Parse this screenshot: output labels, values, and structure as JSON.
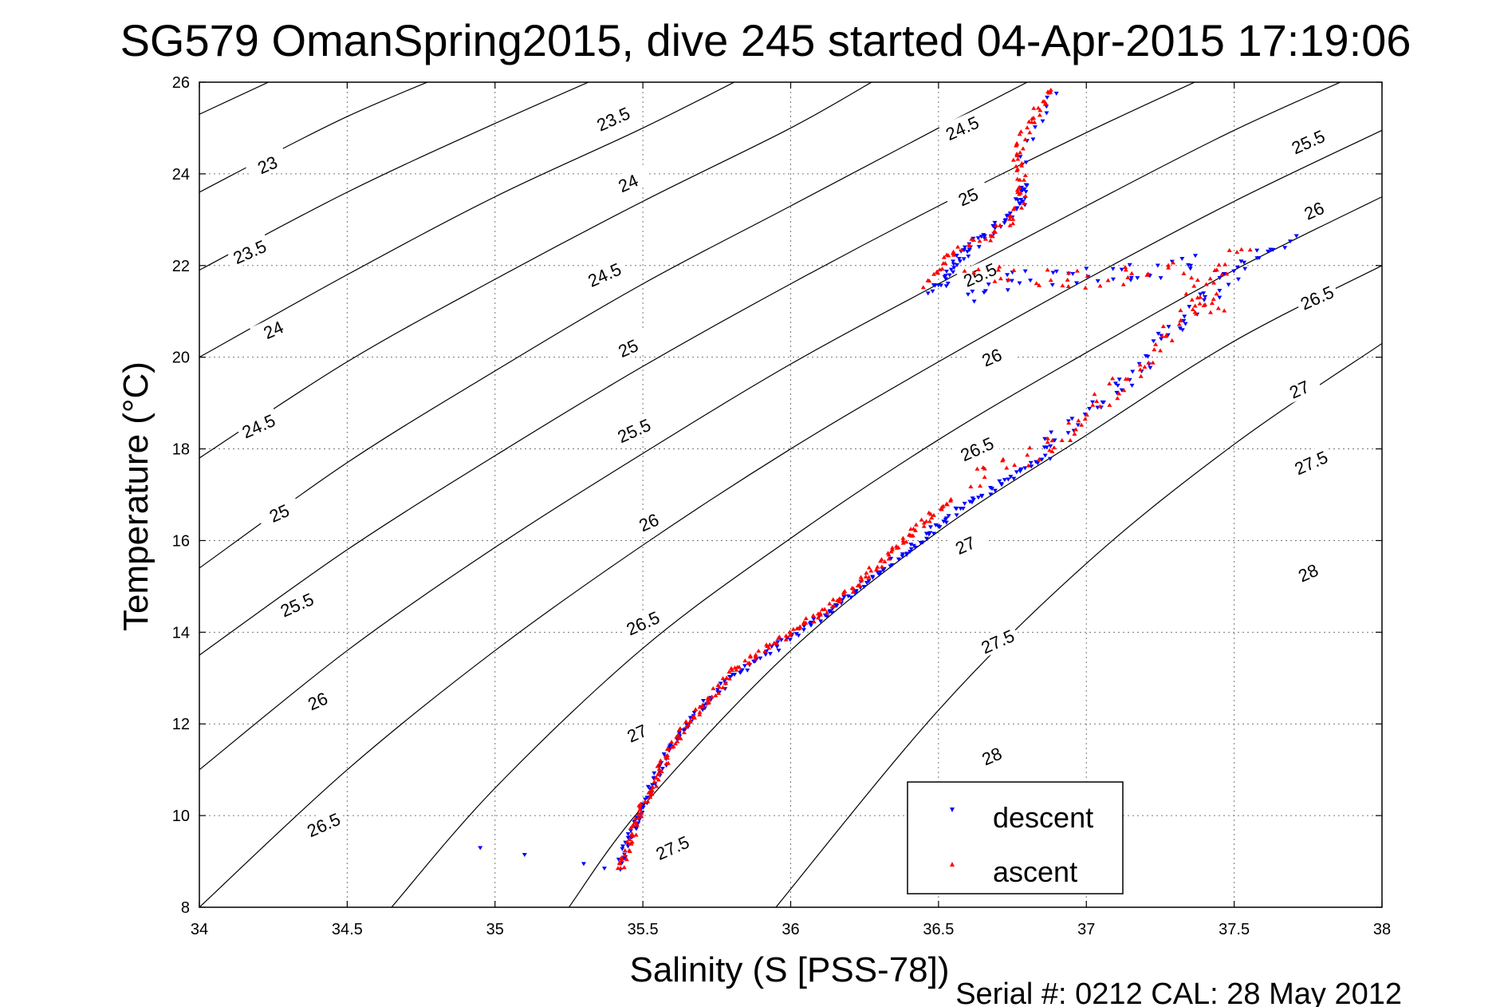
{
  "footer": "Serial #: 0212  CAL: 28 May 2012",
  "chart_data": {
    "type": "scatter",
    "title": "SG579 OmanSpring2015, dive 245 started 04-Apr-2015 17:19:06",
    "xlabel": "Salinity (S [PSS-78])",
    "ylabel": "Temperature (°C)",
    "xlim": [
      34,
      38
    ],
    "ylim": [
      8,
      26
    ],
    "xticks": [
      "34",
      "34.5",
      "35",
      "35.5",
      "36",
      "36.5",
      "37",
      "37.5",
      "38"
    ],
    "yticks": [
      "8",
      "10",
      "12",
      "14",
      "16",
      "18",
      "20",
      "22",
      "24",
      "26"
    ],
    "grid": true,
    "legend_position": "bottom-right",
    "contour_levels": [
      "23",
      "23.5",
      "24",
      "24.5",
      "25",
      "25.5",
      "26",
      "26.5",
      "27",
      "27.5",
      "28"
    ],
    "contours": [
      {
        "level": 23,
        "label": "23",
        "points": [
          [
            34,
            25.3
          ],
          [
            34.5,
            26.8
          ]
        ]
      },
      {
        "level": 23,
        "label": "23",
        "points": [
          [
            34,
            23.6
          ],
          [
            34.5,
            25.25
          ],
          [
            35,
            26.6
          ]
        ]
      },
      {
        "level": 23.5,
        "label": "23.5",
        "points": [
          [
            34,
            21.9
          ],
          [
            34.5,
            23.6
          ],
          [
            35,
            25.1
          ],
          [
            35.6,
            26.8
          ]
        ]
      },
      {
        "level": 24,
        "label": "24",
        "points": [
          [
            34,
            20.0
          ],
          [
            34.5,
            21.8
          ],
          [
            35,
            23.5
          ],
          [
            35.5,
            25.0
          ],
          [
            35.9,
            26.3
          ]
        ]
      },
      {
        "level": 24.5,
        "label": "24.5",
        "points": [
          [
            34,
            17.8
          ],
          [
            34.5,
            19.9
          ],
          [
            35,
            21.7
          ],
          [
            35.5,
            23.4
          ],
          [
            36,
            25.0
          ],
          [
            36.3,
            26.1
          ]
        ]
      },
      {
        "level": 25,
        "label": "25",
        "points": [
          [
            34,
            15.4
          ],
          [
            34.5,
            17.7
          ],
          [
            35,
            19.7
          ],
          [
            35.5,
            21.6
          ],
          [
            36,
            23.3
          ],
          [
            36.5,
            25.0
          ],
          [
            36.8,
            26.0
          ]
        ]
      },
      {
        "level": 25.5,
        "label": "25.5",
        "points": [
          [
            34,
            13.5
          ],
          [
            34.5,
            15.8
          ],
          [
            35,
            17.85
          ],
          [
            35.5,
            19.8
          ],
          [
            36,
            21.6
          ],
          [
            36.5,
            23.3
          ],
          [
            37,
            24.9
          ],
          [
            37.4,
            26.1
          ]
        ]
      },
      {
        "level": 26,
        "label": "26",
        "points": [
          [
            34,
            11.0
          ],
          [
            34.5,
            13.6
          ],
          [
            35,
            15.85
          ],
          [
            35.5,
            17.9
          ],
          [
            36,
            19.85
          ],
          [
            36.5,
            21.6
          ],
          [
            37,
            23.3
          ],
          [
            37.5,
            24.95
          ],
          [
            38,
            26.4
          ]
        ]
      },
      {
        "level": 26.5,
        "label": "26.5",
        "points": [
          [
            34,
            8.0
          ],
          [
            34.5,
            11.0
          ],
          [
            35,
            13.6
          ],
          [
            35.5,
            15.9
          ],
          [
            36,
            18.0
          ],
          [
            36.5,
            19.9
          ],
          [
            37,
            21.7
          ],
          [
            37.5,
            23.4
          ],
          [
            38,
            24.95
          ]
        ]
      },
      {
        "level": 27,
        "label": "27",
        "points": [
          [
            34.65,
            8.0
          ],
          [
            35,
            10.6
          ],
          [
            35.5,
            13.65
          ],
          [
            36,
            16.05
          ],
          [
            36.5,
            18.2
          ],
          [
            37,
            20.1
          ],
          [
            37.5,
            21.9
          ],
          [
            38,
            23.5
          ]
        ]
      },
      {
        "level": 27.5,
        "label": "27.5",
        "points": [
          [
            35.25,
            8.0
          ],
          [
            35.5,
            10.2
          ],
          [
            36,
            13.6
          ],
          [
            36.5,
            16.2
          ],
          [
            37,
            18.3
          ],
          [
            37.5,
            20.35
          ],
          [
            38,
            22.0
          ]
        ]
      },
      {
        "level": 28,
        "label": "28",
        "points": [
          [
            35.95,
            8.0
          ],
          [
            36.5,
            12.3
          ],
          [
            37,
            15.5
          ],
          [
            37.5,
            18.1
          ],
          [
            38,
            20.3
          ]
        ]
      }
    ],
    "contour_labels": [
      {
        "label": "23",
        "s": 34.23,
        "t": 24.2
      },
      {
        "label": "23.5",
        "s": 34.17,
        "t": 22.3
      },
      {
        "label": "24",
        "s": 34.25,
        "t": 20.6
      },
      {
        "label": "24.5",
        "s": 34.2,
        "t": 18.5
      },
      {
        "label": "25",
        "s": 34.27,
        "t": 16.6
      },
      {
        "label": "25.5",
        "s": 34.33,
        "t": 14.6
      },
      {
        "label": "26",
        "s": 34.4,
        "t": 12.5
      },
      {
        "label": "26.5",
        "s": 34.42,
        "t": 9.8
      },
      {
        "label": "23.5",
        "s": 35.4,
        "t": 25.2
      },
      {
        "label": "24",
        "s": 35.45,
        "t": 23.8
      },
      {
        "label": "24.5",
        "s": 35.37,
        "t": 21.8
      },
      {
        "label": "25",
        "s": 35.45,
        "t": 20.2
      },
      {
        "label": "25.5",
        "s": 35.47,
        "t": 18.4
      },
      {
        "label": "26",
        "s": 35.52,
        "t": 16.4
      },
      {
        "label": "26.5",
        "s": 35.5,
        "t": 14.2
      },
      {
        "label": "27",
        "s": 35.48,
        "t": 11.8
      },
      {
        "label": "27.5",
        "s": 35.6,
        "t": 9.3
      },
      {
        "label": "24.5",
        "s": 36.58,
        "t": 25.0
      },
      {
        "label": "25",
        "s": 36.6,
        "t": 23.5
      },
      {
        "label": "25.5",
        "s": 36.64,
        "t": 21.8
      },
      {
        "label": "26",
        "s": 36.68,
        "t": 20.0
      },
      {
        "label": "26.5",
        "s": 36.63,
        "t": 18.0
      },
      {
        "label": "27",
        "s": 36.59,
        "t": 15.9
      },
      {
        "label": "27.5",
        "s": 36.7,
        "t": 13.8
      },
      {
        "label": "28",
        "s": 36.68,
        "t": 11.3
      },
      {
        "label": "25.5",
        "s": 37.75,
        "t": 24.7
      },
      {
        "label": "26",
        "s": 37.77,
        "t": 23.2
      },
      {
        "label": "26.5",
        "s": 37.78,
        "t": 21.3
      },
      {
        "label": "27",
        "s": 37.72,
        "t": 19.3
      },
      {
        "label": "27.5",
        "s": 37.76,
        "t": 17.7
      },
      {
        "label": "28",
        "s": 37.75,
        "t": 15.3
      }
    ],
    "series": [
      {
        "name": "descent",
        "color": "#0000ff",
        "marker": "triangle-down",
        "segments": [
          {
            "points": [
              [
                35.42,
                8.85
              ],
              [
                35.45,
                9.5
              ],
              [
                35.5,
                10.2
              ],
              [
                35.55,
                10.9
              ],
              [
                35.6,
                11.5
              ],
              [
                35.65,
                12.0
              ],
              [
                35.72,
                12.5
              ],
              [
                35.8,
                13.0
              ],
              [
                35.88,
                13.4
              ],
              [
                35.98,
                13.8
              ],
              [
                36.1,
                14.3
              ],
              [
                36.2,
                14.8
              ],
              [
                36.3,
                15.3
              ],
              [
                36.42,
                15.9
              ],
              [
                36.55,
                16.6
              ],
              [
                36.7,
                17.2
              ],
              [
                36.85,
                17.8
              ]
            ],
            "count": 220,
            "jitter": 0.013
          },
          {
            "points": [
              [
                36.85,
                17.9
              ],
              [
                36.95,
                18.6
              ],
              [
                37.05,
                19.1
              ],
              [
                37.15,
                19.6
              ],
              [
                37.25,
                20.3
              ],
              [
                37.35,
                21.0
              ],
              [
                37.45,
                21.5
              ],
              [
                37.55,
                22.2
              ],
              [
                37.7,
                22.55
              ]
            ],
            "count": 70,
            "jitter": 0.03
          },
          {
            "points": [
              [
                36.48,
                21.4
              ],
              [
                36.55,
                22.0
              ],
              [
                36.62,
                22.5
              ],
              [
                36.7,
                22.9
              ],
              [
                36.76,
                23.3
              ],
              [
                36.8,
                23.6
              ],
              [
                36.8,
                23.8
              ]
            ],
            "count": 70,
            "jitter": 0.02
          },
          {
            "points": [
              [
                36.6,
                21.3
              ],
              [
                36.7,
                21.6
              ],
              [
                36.85,
                21.75
              ],
              [
                37.0,
                21.8
              ],
              [
                37.2,
                21.9
              ],
              [
                37.4,
                22.1
              ]
            ],
            "count": 40,
            "jitter": 0.04
          },
          {
            "points": [
              [
                36.78,
                24.3
              ],
              [
                36.82,
                24.8
              ],
              [
                36.85,
                25.4
              ],
              [
                36.9,
                25.85
              ]
            ],
            "count": 10,
            "jitter": 0.02
          },
          {
            "points": [
              [
                34.95,
                9.3
              ],
              [
                35.1,
                9.15
              ],
              [
                35.3,
                8.95
              ],
              [
                35.37,
                8.85
              ]
            ],
            "count": 4,
            "jitter": 0.0
          }
        ]
      },
      {
        "name": "ascent",
        "color": "#ff0000",
        "marker": "triangle-up",
        "segments": [
          {
            "points": [
              [
                35.42,
                8.8
              ],
              [
                35.46,
                9.5
              ],
              [
                35.5,
                10.2
              ],
              [
                35.55,
                10.9
              ],
              [
                35.6,
                11.5
              ],
              [
                35.65,
                12.0
              ],
              [
                35.72,
                12.5
              ],
              [
                35.8,
                13.1
              ],
              [
                35.9,
                13.6
              ],
              [
                36.0,
                14.0
              ],
              [
                36.12,
                14.5
              ],
              [
                36.22,
                15.0
              ],
              [
                36.3,
                15.5
              ],
              [
                36.38,
                16.0
              ],
              [
                36.47,
                16.5
              ],
              [
                36.55,
                16.9
              ]
            ],
            "count": 230,
            "jitter": 0.013
          },
          {
            "points": [
              [
                36.6,
                17.3
              ],
              [
                36.7,
                17.6
              ],
              [
                36.85,
                17.9
              ],
              [
                36.95,
                18.4
              ],
              [
                37.03,
                18.9
              ],
              [
                37.1,
                19.4
              ],
              [
                37.2,
                20.0
              ],
              [
                37.3,
                20.7
              ],
              [
                37.4,
                21.3
              ],
              [
                37.45,
                21.8
              ],
              [
                37.52,
                22.4
              ]
            ],
            "count": 80,
            "jitter": 0.035
          },
          {
            "points": [
              [
                36.45,
                21.6
              ],
              [
                36.5,
                21.9
              ],
              [
                36.55,
                22.3
              ],
              [
                36.65,
                22.6
              ],
              [
                36.75,
                23.0
              ],
              [
                36.78,
                23.5
              ],
              [
                36.78,
                24.0
              ],
              [
                36.76,
                24.5
              ],
              [
                36.8,
                25.0
              ],
              [
                36.85,
                25.5
              ],
              [
                36.88,
                25.85
              ]
            ],
            "count": 90,
            "jitter": 0.018
          },
          {
            "points": [
              [
                36.6,
                21.8
              ],
              [
                36.75,
                21.8
              ],
              [
                36.9,
                21.7
              ],
              [
                37.0,
                21.7
              ],
              [
                37.15,
                21.8
              ],
              [
                37.3,
                21.9
              ],
              [
                37.4,
                21.0
              ],
              [
                37.45,
                21.1
              ]
            ],
            "count": 45,
            "jitter": 0.04
          }
        ]
      }
    ]
  }
}
